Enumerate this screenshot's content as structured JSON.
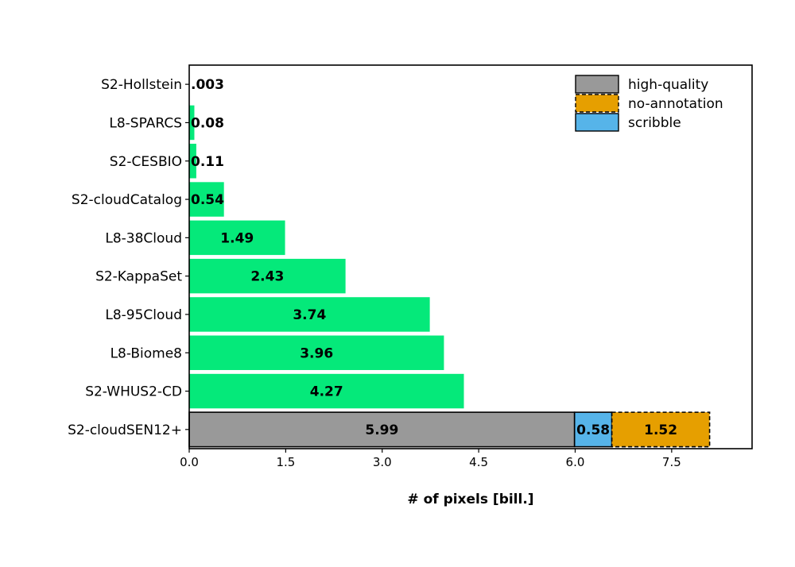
{
  "chart_data": {
    "type": "bar",
    "orientation": "horizontal",
    "title": "",
    "xlabel": "# of pixels [bill.]",
    "ylabel": "",
    "xlim": [
      0,
      8.75
    ],
    "xticks": [
      0.0,
      1.5,
      3.0,
      4.5,
      6.0,
      7.5
    ],
    "xtick_labels": [
      "0.0",
      "1.5",
      "3.0",
      "4.5",
      "6.0",
      "7.5"
    ],
    "grid": false,
    "legend_position": "top-right",
    "categories": [
      "S2-Hollstein",
      "L8-SPARCS",
      "S2-CESBIO",
      "S2-cloudCatalog",
      "L8-38Cloud",
      "S2-KappaSet",
      "L8-95Cloud",
      "L8-Biome8",
      "S2-WHUS2-CD",
      "S2-cloudSEN12+"
    ],
    "values": [
      0.003,
      0.08,
      0.11,
      0.54,
      1.49,
      2.43,
      3.74,
      3.96,
      4.27,
      null
    ],
    "value_labels": [
      ".003",
      "0.08",
      "0.11",
      "0.54",
      "1.49",
      "2.43",
      "3.74",
      "3.96",
      "4.27",
      ""
    ],
    "bar_color": "#05e97a",
    "stacked_bar": {
      "category": "S2-cloudSEN12+",
      "segments": [
        {
          "name": "high-quality",
          "value": 5.99,
          "label": "5.99",
          "color": "#999999",
          "dashed": false
        },
        {
          "name": "scribble",
          "value": 0.58,
          "label": "0.58",
          "color": "#56b4e9",
          "dashed": false
        },
        {
          "name": "no-annotation",
          "value": 1.52,
          "label": "1.52",
          "color": "#e69f00",
          "dashed": true
        }
      ]
    },
    "legend": [
      {
        "name": "high-quality",
        "color": "#999999",
        "dashed": false
      },
      {
        "name": "no-annotation",
        "color": "#e69f00",
        "dashed": true
      },
      {
        "name": "scribble",
        "color": "#56b4e9",
        "dashed": false
      }
    ]
  }
}
